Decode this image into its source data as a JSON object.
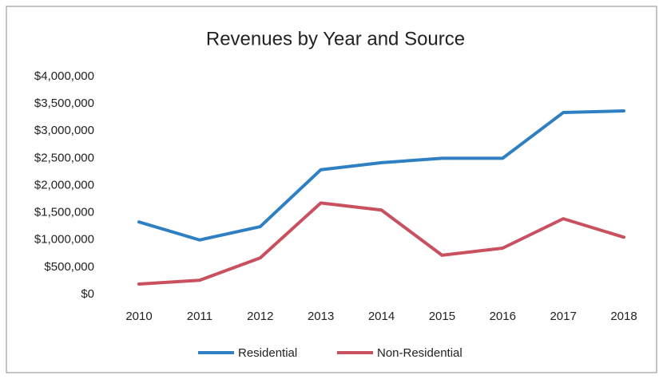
{
  "chart_data": {
    "type": "line",
    "title": "Revenues by Year and Source",
    "categories": [
      "2010",
      "2011",
      "2012",
      "2013",
      "2014",
      "2015",
      "2016",
      "2017",
      "2018"
    ],
    "series": [
      {
        "name": "Residential",
        "color": "#2f80c3",
        "values": [
          1330000,
          1000000,
          1245000,
          2290000,
          2420000,
          2500000,
          2500000,
          3340000,
          3370000
        ]
      },
      {
        "name": "Non-Residential",
        "color": "#c9505f",
        "values": [
          190000,
          260000,
          670000,
          1680000,
          1550000,
          720000,
          850000,
          1390000,
          1050000
        ]
      }
    ],
    "ylim": [
      0,
      4000000
    ],
    "yticks": [
      {
        "value": 0,
        "label": "$0"
      },
      {
        "value": 500000,
        "label": "$500,000"
      },
      {
        "value": 1000000,
        "label": "$1,000,000"
      },
      {
        "value": 1500000,
        "label": "$1,500,000"
      },
      {
        "value": 2000000,
        "label": "$2,000,000"
      },
      {
        "value": 2500000,
        "label": "$2,500,000"
      },
      {
        "value": 3000000,
        "label": "$3,000,000"
      },
      {
        "value": 3500000,
        "label": "$3,500,000"
      },
      {
        "value": 4000000,
        "label": "$4,000,000"
      }
    ],
    "legend": "bottom"
  }
}
